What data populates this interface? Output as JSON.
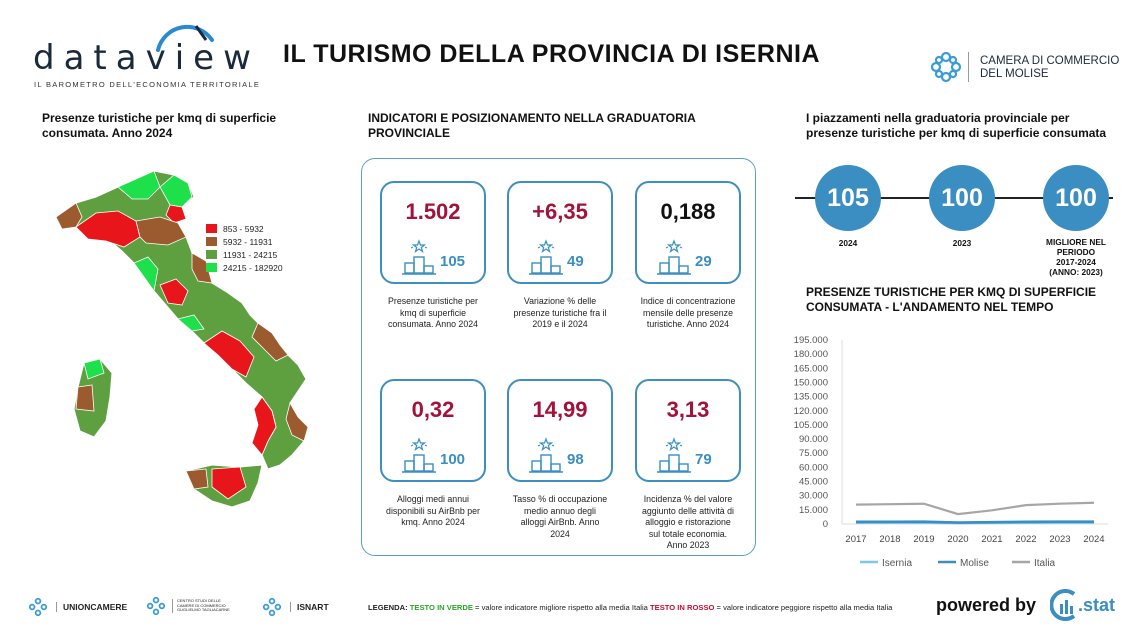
{
  "header": {
    "logo_text": "dataview",
    "logo_tagline": "IL BAROMETRO DELL'ECONOMIA TERRITORIALE",
    "title": "IL TURISMO DELLA PROVINCIA DI ISERNIA",
    "chamber_line1": "CAMERA DI COMMERCIO",
    "chamber_line2": "DEL MOLISE"
  },
  "map_section": {
    "title_line1": "Presenze turistiche per kmq di superficie",
    "title_line2": "consumata. Anno 2024",
    "legend": [
      {
        "label": "853 - 5932",
        "color": "#e8161b"
      },
      {
        "label": "5932 - 11931",
        "color": "#9c5a2f"
      },
      {
        "label": "11931 - 24215",
        "color": "#5ea040"
      },
      {
        "label": "24215 - 182920",
        "color": "#1ee04a"
      }
    ]
  },
  "indicators": {
    "title_line1": "INDICATORI E POSIZIONAMENTO NELLA GRADUATORIA",
    "title_line2": "PROVINCIALE",
    "cards": [
      {
        "value": "1.502",
        "color": "#a3123a",
        "rank": "105",
        "desc": [
          "Presenze turistiche per",
          "kmq di superficie",
          "consumata. Anno 2024"
        ]
      },
      {
        "value": "+6,35",
        "color": "#a3123a",
        "rank": "49",
        "desc": [
          "Variazione % delle",
          "presenze turistiche fra il",
          "2019 e il 2024"
        ]
      },
      {
        "value": "0,188",
        "color": "#111111",
        "rank": "29",
        "desc": [
          "Indice di concentrazione",
          "mensile delle presenze",
          "turistiche. Anno 2024"
        ]
      },
      {
        "value": "0,32",
        "color": "#a3123a",
        "rank": "100",
        "desc": [
          "Alloggi medi annui",
          "disponibili su AirBnb per",
          "kmq. Anno 2024"
        ]
      },
      {
        "value": "14,99",
        "color": "#a3123a",
        "rank": "98",
        "desc": [
          "Tasso % di occupazione",
          "medio annuo degli",
          "alloggi AirBnb. Anno",
          "2024"
        ]
      },
      {
        "value": "3,13",
        "color": "#a3123a",
        "rank": "79",
        "desc": [
          "Incidenza % del valore",
          "aggiunto delle attività di",
          "alloggio e ristorazione",
          "sul totale economia.",
          "Anno 2023"
        ]
      }
    ]
  },
  "placements": {
    "title_line1": "I piazzamenti nella graduatoria provinciale per",
    "title_line2": "presenze turistiche per kmq di superficie consumata",
    "items": [
      {
        "value": "105",
        "label": [
          "2024"
        ]
      },
      {
        "value": "100",
        "label": [
          "2023"
        ]
      },
      {
        "value": "100",
        "label": [
          "MIGLIORE NEL",
          "PERIODO",
          "2017-2024",
          "(ANNO: 2023)"
        ]
      }
    ]
  },
  "trend": {
    "title_line1": "PRESENZE TURISTICHE PER KMQ DI SUPERFICIE",
    "title_line2": "CONSUMATA - L'ANDAMENTO NEL TEMPO"
  },
  "chart_data": {
    "type": "line",
    "title": "",
    "xlabel": "",
    "ylabel": "",
    "x": [
      "2017",
      "2018",
      "2019",
      "2020",
      "2021",
      "2022",
      "2023",
      "2024"
    ],
    "y_ticks": [
      "195.000",
      "180.000",
      "165.000",
      "150.000",
      "135.000",
      "120.000",
      "105.000",
      "90.000",
      "75.000",
      "60.000",
      "45.000",
      "30.000",
      "15.000",
      "0"
    ],
    "ylim": [
      0,
      195000
    ],
    "grid": false,
    "legend_position": "bottom",
    "series": [
      {
        "name": "Isernia",
        "color": "#7ec8ea",
        "values": [
          1400,
          1450,
          1500,
          1000,
          1200,
          1400,
          1450,
          1502
        ]
      },
      {
        "name": "Molise",
        "color": "#3a8ec2",
        "values": [
          2300,
          2350,
          2400,
          1500,
          1900,
          2300,
          2450,
          2500
        ]
      },
      {
        "name": "Italia",
        "color": "#a6a6a6",
        "values": [
          20500,
          21000,
          21500,
          10500,
          14500,
          20000,
          21500,
          22500
        ]
      }
    ]
  },
  "footer": {
    "logo1": "UNIONCAMERE",
    "logo2_line1": "CENTRO STUDI DELLE",
    "logo2_line2": "CAMERE DI COMMERCIO",
    "logo2_line3": "GUGLIELMO TAGLIACARNE",
    "logo3": "ISNART",
    "legend_prefix": "LEGENDA:",
    "legend_green": "TESTO IN VERDE",
    "legend_mid": " = valore indicatore migliore rispetto alla media Italia ",
    "legend_red": "TESTO IN ROSSO",
    "legend_suffix": " = valore indicatore peggiore rispetto alla media Italia",
    "powered_by": "powered by",
    "stat_brand": "stat"
  }
}
